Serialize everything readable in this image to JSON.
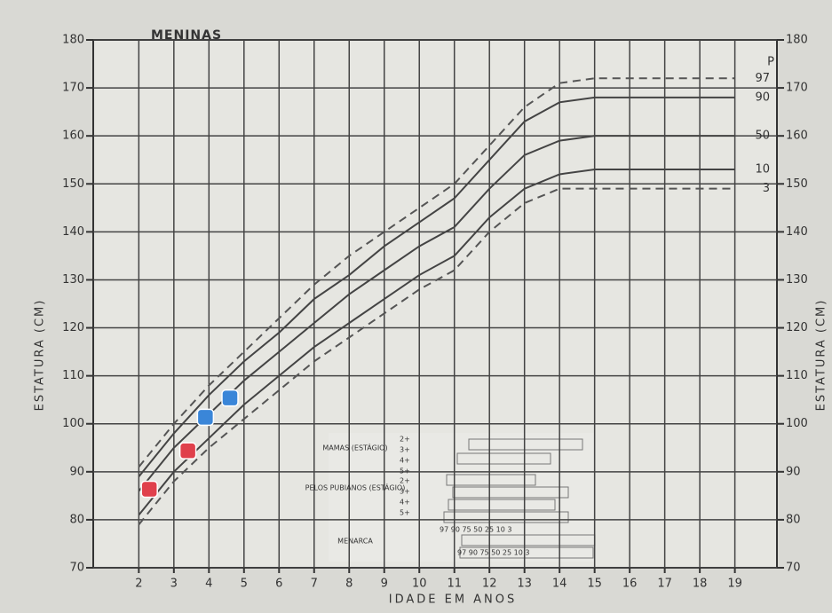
{
  "chart_data": {
    "type": "line",
    "title": "MENINAS",
    "x_label": "IDADE EM ANOS",
    "y_label": "ESTATURA (CM)",
    "percentile_header": "P",
    "x": [
      2,
      3,
      4,
      5,
      6,
      7,
      8,
      9,
      10,
      11,
      12,
      13,
      14,
      15,
      16,
      17,
      18,
      19
    ],
    "series": [
      {
        "name": "97",
        "color": "#555",
        "dashed": true,
        "values": [
          91,
          100,
          108,
          115,
          122,
          129,
          135,
          140,
          145,
          150,
          158,
          166,
          171,
          172,
          172,
          172,
          172,
          172
        ]
      },
      {
        "name": "90",
        "color": "#444",
        "dashed": false,
        "values": [
          89,
          98,
          106,
          113,
          119,
          126,
          131,
          137,
          142,
          147,
          155,
          163,
          167,
          168,
          168,
          168,
          168,
          168
        ]
      },
      {
        "name": "50",
        "color": "#444",
        "dashed": false,
        "values": [
          86,
          95,
          102,
          109,
          115,
          121,
          127,
          132,
          137,
          141,
          149,
          156,
          159,
          160,
          160,
          160,
          160,
          160
        ]
      },
      {
        "name": "10",
        "color": "#444",
        "dashed": false,
        "values": [
          81,
          90,
          97,
          104,
          110,
          116,
          121,
          126,
          131,
          135,
          143,
          149,
          152,
          153,
          153,
          153,
          153,
          153
        ]
      },
      {
        "name": "3",
        "color": "#555",
        "dashed": true,
        "values": [
          79,
          88,
          95,
          101,
          107,
          113,
          118,
          123,
          128,
          132,
          140,
          146,
          149,
          149,
          149,
          149,
          149,
          149
        ]
      }
    ],
    "markers": [
      {
        "x": 2.3,
        "y": 86,
        "color": "#e0404c"
      },
      {
        "x": 3.4,
        "y": 94,
        "color": "#e0404c"
      },
      {
        "x": 3.9,
        "y": 101,
        "color": "#3a86d8"
      },
      {
        "x": 4.6,
        "y": 105,
        "color": "#3a86d8"
      }
    ],
    "xlim": [
      0.7,
      20.2
    ],
    "ylim": [
      70,
      180
    ],
    "xticks": [
      2,
      3,
      4,
      5,
      6,
      7,
      8,
      9,
      10,
      11,
      12,
      13,
      14,
      15,
      16,
      17,
      18,
      19
    ],
    "yticks": [
      70,
      80,
      90,
      100,
      110,
      120,
      130,
      140,
      150,
      160,
      170,
      180
    ],
    "grid": true,
    "table_labels": [
      "MAMAS (ESTÁGIO)",
      "PELOS PUBIANOS (ESTÁGIO)",
      "MENARCA"
    ],
    "stages": [
      "2+",
      "3+",
      "4+",
      "5+"
    ],
    "percentile_row": "97 90 75 50 25 10 3"
  }
}
